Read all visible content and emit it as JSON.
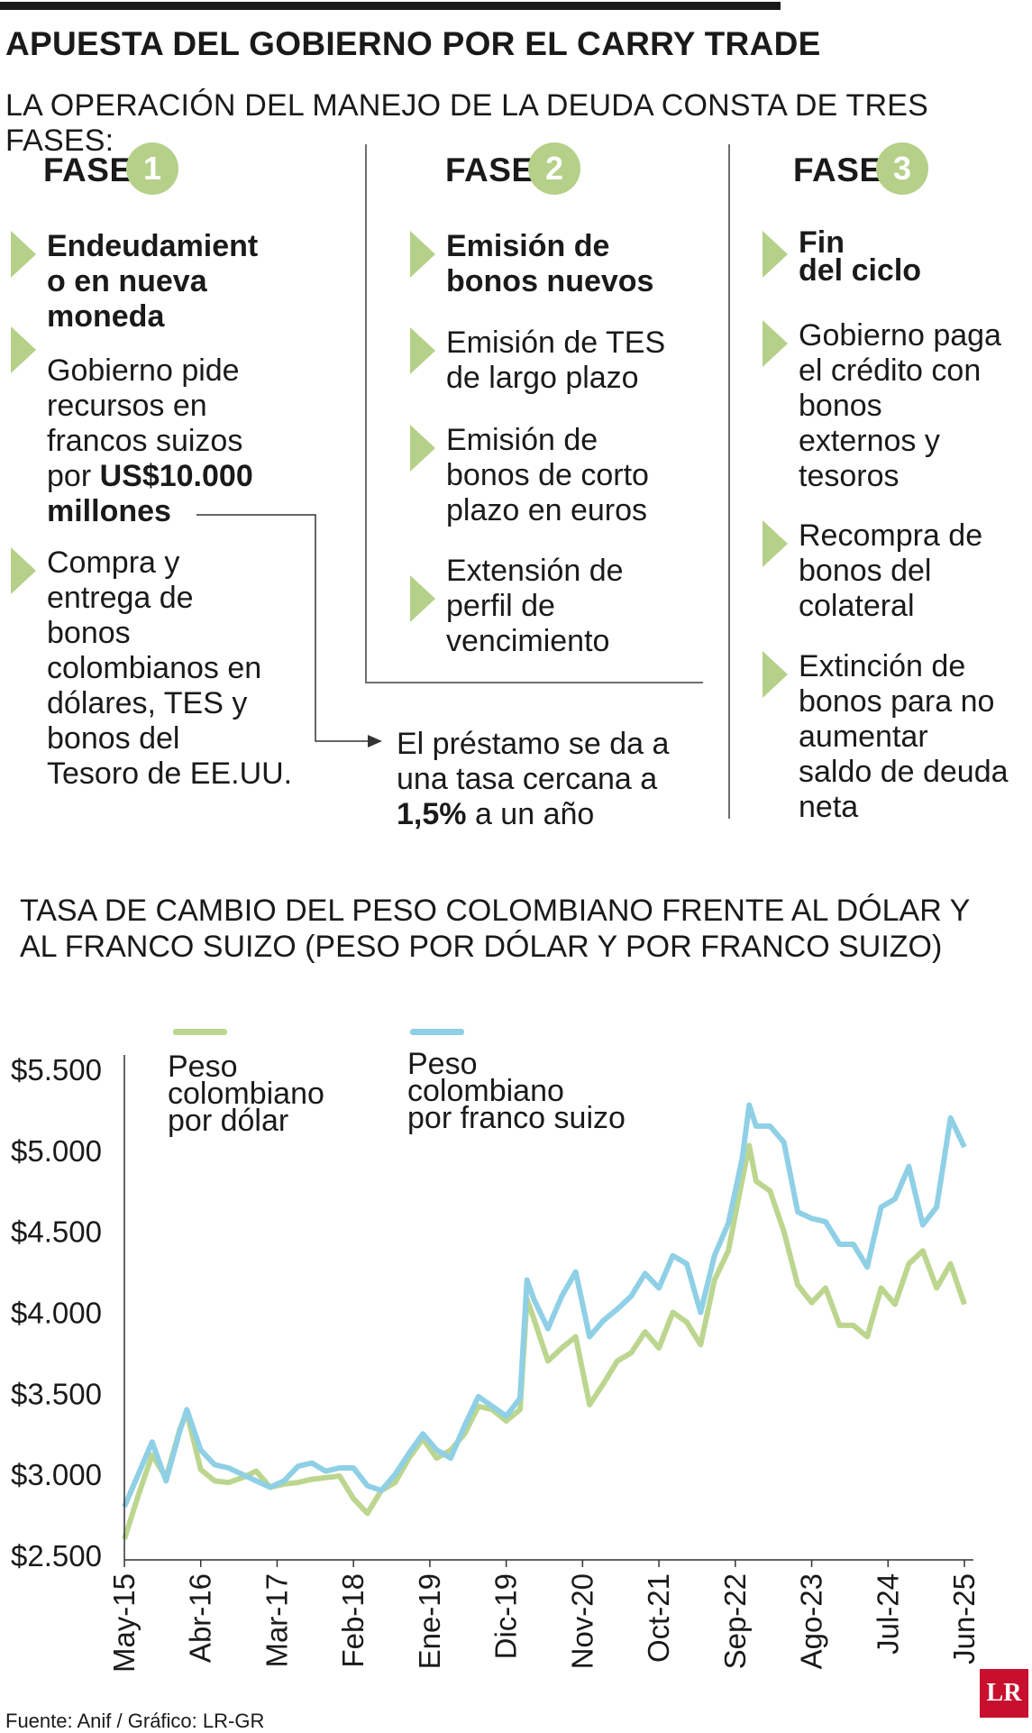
{
  "title": "APUESTA DEL GOBIERNO POR EL CARRY TRADE",
  "subtitle": "LA OPERACIÓN DEL MANEJO DE LA DEUDA CONSTA DE TRES FASES:",
  "phases": [
    {
      "label": "FASE",
      "number": "1",
      "items": [
        {
          "text": "Endeudamient\no en nueva\nmoneda",
          "bold": true
        },
        {
          "text": "Gobierno pide\nrecursos en\nfrancos suizos\npor ",
          "strong": "US$10.000\nmillones",
          "bold": false
        },
        {
          "text": "Compra y\nentrega de\nbonos\ncolombianos en\ndólares, TES y\nbonos del\nTesoro de EE.UU.",
          "bold": false
        }
      ]
    },
    {
      "label": "FASE",
      "number": "2",
      "items": [
        {
          "text": "Emisión de\nbonos nuevos",
          "bold": true
        },
        {
          "text": "Emisión de TES\nde largo plazo",
          "bold": false
        },
        {
          "text": "Emisión de\nbonos de corto\nplazo en euros",
          "bold": false
        },
        {
          "text": "Extensión de\nperfil de\nvencimiento",
          "bold": false
        }
      ]
    },
    {
      "label": "FASE",
      "number": "3",
      "items": [
        {
          "text": "Fin\ndel ciclo",
          "bold": true
        },
        {
          "text": "Gobierno paga\nel crédito con\nbonos\nexternos y\ntesoros",
          "bold": false
        },
        {
          "text": "Recompra de\nbonos del\ncolateral",
          "bold": false
        },
        {
          "text": "Extinción de\nbonos para no\naumentar\nsaldo de deuda\nneta",
          "bold": false
        }
      ]
    }
  ],
  "note": {
    "line1": "El préstamo se da a",
    "line2": "una tasa cercana a",
    "strong": "1,5%",
    "tail": " a un año"
  },
  "chart_title": "TASA DE CAMBIO DEL PESO COLOMBIANO FRENTE AL DÓLAR Y\nAL FRANCO SUIZO (PESO POR DÓLAR Y POR FRANCO SUIZO)",
  "source": "Fuente:  Anif / Gráfico: LR-GR",
  "logo": "LR",
  "colors": {
    "usd": "#bcd68f",
    "chf": "#8fd0e6",
    "accent": "#b5d088",
    "text": "#1a1a1a"
  },
  "chart_data": {
    "type": "line",
    "ylim": [
      2500,
      5500
    ],
    "yticks": [
      5500,
      5000,
      4500,
      4000,
      3500,
      3000,
      2500
    ],
    "ytick_labels": [
      "$5.500",
      "$5.000",
      "$4.500",
      "$4.000",
      "$3.500",
      "$3.000",
      "$2.500"
    ],
    "xticks": [
      "May-15",
      "Abr-16",
      "Mar-17",
      "Feb-18",
      "Ene-19",
      "Dic-19",
      "Nov-20",
      "Oct-21",
      "Sep-22",
      "Ago-23",
      "Jul-24",
      "Jun-25"
    ],
    "series": [
      {
        "name": "Peso\ncolombiano\npor dólar",
        "color": "#bcd68f",
        "points": [
          [
            "May-15",
            2600
          ],
          [
            "Jul-15",
            2870
          ],
          [
            "Sep-15",
            3120
          ],
          [
            "Nov-15",
            2980
          ],
          [
            "Ene-16",
            3280
          ],
          [
            "Feb-16",
            3380
          ],
          [
            "Abr-16",
            3030
          ],
          [
            "Jun-16",
            2960
          ],
          [
            "Ago-16",
            2950
          ],
          [
            "Oct-16",
            2980
          ],
          [
            "Dic-16",
            3020
          ],
          [
            "Feb-17",
            2920
          ],
          [
            "Abr-17",
            2940
          ],
          [
            "Jun-17",
            2950
          ],
          [
            "Ago-17",
            2970
          ],
          [
            "Oct-17",
            2980
          ],
          [
            "Dic-17",
            2990
          ],
          [
            "Feb-18",
            2850
          ],
          [
            "Abr-18",
            2760
          ],
          [
            "Jun-18",
            2900
          ],
          [
            "Ago-18",
            2950
          ],
          [
            "Oct-18",
            3100
          ],
          [
            "Dic-18",
            3220
          ],
          [
            "Feb-19",
            3100
          ],
          [
            "Abr-19",
            3150
          ],
          [
            "Jun-19",
            3250
          ],
          [
            "Ago-19",
            3420
          ],
          [
            "Oct-19",
            3400
          ],
          [
            "Dic-19",
            3330
          ],
          [
            "Feb-20",
            3400
          ],
          [
            "Mar-20",
            4080
          ],
          [
            "Abr-20",
            3960
          ],
          [
            "Jun-20",
            3700
          ],
          [
            "Ago-20",
            3780
          ],
          [
            "Oct-20",
            3850
          ],
          [
            "Dic-20",
            3430
          ],
          [
            "Feb-21",
            3560
          ],
          [
            "Abr-21",
            3700
          ],
          [
            "Jun-21",
            3750
          ],
          [
            "Ago-21",
            3880
          ],
          [
            "Oct-21",
            3780
          ],
          [
            "Dic-21",
            4000
          ],
          [
            "Feb-22",
            3940
          ],
          [
            "Abr-22",
            3800
          ],
          [
            "Jun-22",
            4200
          ],
          [
            "Ago-22",
            4380
          ],
          [
            "Oct-22",
            4820
          ],
          [
            "Nov-22",
            5030
          ],
          [
            "Dic-22",
            4810
          ],
          [
            "Feb-23",
            4750
          ],
          [
            "Abr-23",
            4500
          ],
          [
            "Jun-23",
            4170
          ],
          [
            "Ago-23",
            4060
          ],
          [
            "Oct-23",
            4150
          ],
          [
            "Dic-23",
            3920
          ],
          [
            "Feb-24",
            3920
          ],
          [
            "Abr-24",
            3850
          ],
          [
            "Jun-24",
            4150
          ],
          [
            "Ago-24",
            4050
          ],
          [
            "Oct-24",
            4300
          ],
          [
            "Dic-24",
            4380
          ],
          [
            "Feb-25",
            4150
          ],
          [
            "Abr-25",
            4300
          ],
          [
            "Jun-25",
            4050
          ]
        ]
      },
      {
        "name": "Peso\ncolombiano\npor franco suizo",
        "color": "#8fd0e6",
        "points": [
          [
            "May-15",
            2800
          ],
          [
            "Jul-15",
            3000
          ],
          [
            "Sep-15",
            3200
          ],
          [
            "Nov-15",
            2960
          ],
          [
            "Ene-16",
            3270
          ],
          [
            "Feb-16",
            3400
          ],
          [
            "Abr-16",
            3150
          ],
          [
            "Jun-16",
            3060
          ],
          [
            "Ago-16",
            3040
          ],
          [
            "Oct-16",
            3000
          ],
          [
            "Dic-16",
            2960
          ],
          [
            "Feb-17",
            2920
          ],
          [
            "Abr-17",
            2960
          ],
          [
            "Jun-17",
            3050
          ],
          [
            "Ago-17",
            3070
          ],
          [
            "Oct-17",
            3020
          ],
          [
            "Dic-17",
            3040
          ],
          [
            "Feb-18",
            3040
          ],
          [
            "Abr-18",
            2930
          ],
          [
            "Jun-18",
            2900
          ],
          [
            "Ago-18",
            3000
          ],
          [
            "Oct-18",
            3130
          ],
          [
            "Dic-18",
            3250
          ],
          [
            "Feb-19",
            3150
          ],
          [
            "Abr-19",
            3100
          ],
          [
            "Jun-19",
            3300
          ],
          [
            "Ago-19",
            3480
          ],
          [
            "Oct-19",
            3420
          ],
          [
            "Dic-19",
            3360
          ],
          [
            "Feb-20",
            3470
          ],
          [
            "Mar-20",
            4200
          ],
          [
            "Abr-20",
            4080
          ],
          [
            "Jun-20",
            3900
          ],
          [
            "Ago-20",
            4100
          ],
          [
            "Oct-20",
            4250
          ],
          [
            "Dic-20",
            3850
          ],
          [
            "Feb-21",
            3950
          ],
          [
            "Abr-21",
            4020
          ],
          [
            "Jun-21",
            4100
          ],
          [
            "Ago-21",
            4240
          ],
          [
            "Oct-21",
            4150
          ],
          [
            "Dic-21",
            4350
          ],
          [
            "Feb-22",
            4300
          ],
          [
            "Abr-22",
            4000
          ],
          [
            "Jun-22",
            4350
          ],
          [
            "Ago-22",
            4550
          ],
          [
            "Oct-22",
            4950
          ],
          [
            "Nov-22",
            5280
          ],
          [
            "Dic-22",
            5150
          ],
          [
            "Feb-23",
            5150
          ],
          [
            "Abr-23",
            5050
          ],
          [
            "Jun-23",
            4620
          ],
          [
            "Ago-23",
            4580
          ],
          [
            "Oct-23",
            4560
          ],
          [
            "Dic-23",
            4420
          ],
          [
            "Feb-24",
            4420
          ],
          [
            "Abr-24",
            4280
          ],
          [
            "Jun-24",
            4650
          ],
          [
            "Ago-24",
            4700
          ],
          [
            "Oct-24",
            4900
          ],
          [
            "Dic-24",
            4540
          ],
          [
            "Feb-25",
            4650
          ],
          [
            "Abr-25",
            5200
          ],
          [
            "Jun-25",
            5020
          ]
        ]
      }
    ]
  }
}
